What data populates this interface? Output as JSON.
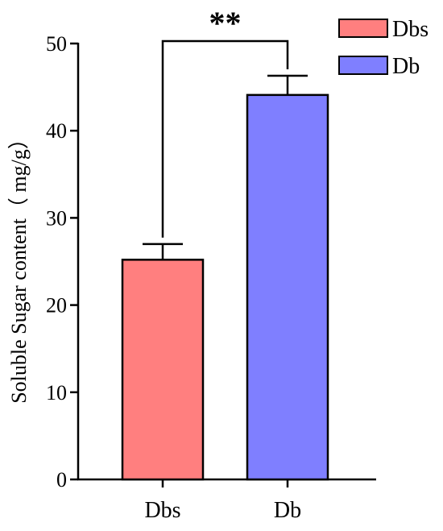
{
  "chart_data": {
    "type": "bar",
    "categories": [
      "Dbs",
      "Db"
    ],
    "values": [
      25.2,
      44.1
    ],
    "error_upper": [
      27.0,
      46.3
    ],
    "colors": [
      "#ff7f7f",
      "#7f7fff"
    ],
    "ylabel": "Soluble Sugar content（ mg/g）",
    "ylim": [
      0,
      50
    ],
    "yticks": [
      0,
      10,
      20,
      30,
      40,
      50
    ],
    "grid": false,
    "legend": {
      "placement": "top-right",
      "entries": [
        "Dbs",
        "Db"
      ]
    },
    "annotations": [
      {
        "text": "**",
        "between": [
          "Dbs",
          "Db"
        ]
      }
    ]
  }
}
